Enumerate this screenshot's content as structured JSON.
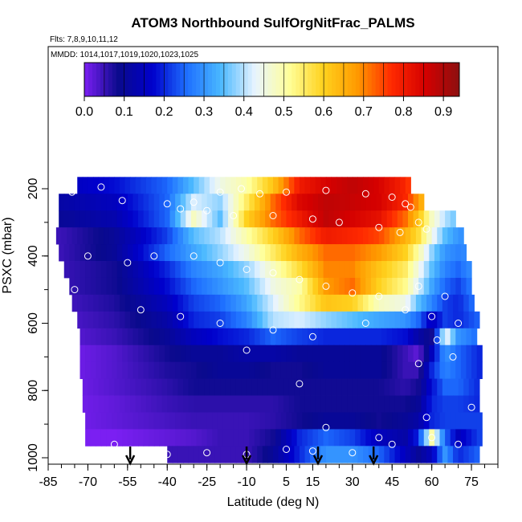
{
  "chart_data": {
    "type": "heatmap",
    "title": "ATOM3 Northbound SulfOrgNitFrac_PALMS",
    "subtitle_flights": "Flts: 7,8,9,10,11,12",
    "subtitle_dates": "MMDD: 1014,1017,1019,1020,1023,1025",
    "xlabel": "Latitude (deg N)",
    "ylabel": "PSXC (mbar)",
    "xlim": [
      -85,
      85
    ],
    "ylim": [
      1000,
      0
    ],
    "x_ticks": [
      -85,
      -70,
      -55,
      -40,
      -25,
      -10,
      5,
      15,
      30,
      45,
      60,
      75
    ],
    "y_ticks": [
      200,
      400,
      600,
      800,
      1000
    ],
    "colorbar": {
      "min": 0.0,
      "max": 0.94,
      "ticks": [
        0.0,
        0.1,
        0.2,
        0.3,
        0.4,
        0.5,
        0.6,
        0.7,
        0.8,
        0.9
      ],
      "colors": [
        "#7b1ff2",
        "#0a0a8c",
        "#0000cc",
        "#1e6fff",
        "#4ab8ff",
        "#e8f4ff",
        "#ffff9a",
        "#ffd21e",
        "#ff9a00",
        "#ff2a00",
        "#d40000",
        "#8c1010"
      ]
    },
    "arrows_latitude": [
      -54,
      -10,
      17,
      38
    ],
    "pressure_levels": [
      190,
      240,
      290,
      340,
      390,
      440,
      490,
      540,
      590,
      640,
      690,
      740,
      790,
      840,
      890,
      940,
      990
    ],
    "band_lat_ranges": [
      [
        -74,
        52
      ],
      [
        -81,
        56
      ],
      [
        -81,
        69
      ],
      [
        -82,
        71
      ],
      [
        -81,
        73
      ],
      [
        -79,
        74
      ],
      [
        -77,
        75
      ],
      [
        -76,
        76
      ],
      [
        -74,
        77
      ],
      [
        -73,
        77
      ],
      [
        -73,
        78
      ],
      [
        -73,
        78
      ],
      [
        -72,
        78
      ],
      [
        -72,
        78
      ],
      [
        -71,
        78
      ],
      [
        -71,
        78
      ],
      [
        -40,
        78
      ]
    ],
    "profile_lat": [
      -80,
      -60,
      -40,
      -30,
      -20,
      -10,
      0,
      10,
      20,
      30,
      40,
      50,
      55,
      60,
      65,
      70,
      78
    ],
    "profile_values": [
      [
        0.15,
        0.18,
        0.25,
        0.35,
        0.45,
        0.5,
        0.62,
        0.8,
        0.85,
        0.88,
        0.85,
        0.78,
        0.7,
        0.6,
        0.5,
        0.4,
        0.35
      ],
      [
        0.12,
        0.15,
        0.25,
        0.42,
        0.38,
        0.55,
        0.72,
        0.84,
        0.88,
        0.87,
        0.85,
        0.78,
        0.68,
        0.55,
        0.45,
        0.35,
        0.3
      ],
      [
        0.1,
        0.13,
        0.25,
        0.48,
        0.35,
        0.6,
        0.72,
        0.8,
        0.88,
        0.85,
        0.82,
        0.72,
        0.62,
        0.48,
        0.4,
        0.35,
        0.3
      ],
      [
        0.05,
        0.1,
        0.22,
        0.35,
        0.4,
        0.5,
        0.6,
        0.72,
        0.8,
        0.78,
        0.75,
        0.65,
        0.58,
        0.45,
        0.35,
        0.3,
        0.28
      ],
      [
        0.05,
        0.1,
        0.25,
        0.32,
        0.38,
        0.45,
        0.55,
        0.65,
        0.72,
        0.72,
        0.68,
        0.6,
        0.5,
        0.38,
        0.3,
        0.28,
        0.3
      ],
      [
        0.05,
        0.08,
        0.2,
        0.28,
        0.32,
        0.38,
        0.48,
        0.58,
        0.7,
        0.7,
        0.62,
        0.55,
        0.45,
        0.35,
        0.28,
        0.25,
        0.32
      ],
      [
        0.05,
        0.08,
        0.18,
        0.25,
        0.3,
        0.35,
        0.45,
        0.5,
        0.68,
        0.72,
        0.6,
        0.52,
        0.42,
        0.32,
        0.25,
        0.22,
        0.3
      ],
      [
        0.04,
        0.07,
        0.15,
        0.22,
        0.25,
        0.32,
        0.42,
        0.52,
        0.62,
        0.6,
        0.48,
        0.45,
        0.35,
        0.28,
        0.22,
        0.2,
        0.28
      ],
      [
        0.03,
        0.06,
        0.12,
        0.2,
        0.22,
        0.28,
        0.4,
        0.42,
        0.38,
        0.35,
        0.32,
        0.3,
        0.25,
        0.15,
        0.22,
        0.2,
        0.25
      ],
      [
        0.02,
        0.05,
        0.1,
        0.15,
        0.18,
        0.2,
        0.25,
        0.22,
        0.2,
        0.2,
        0.2,
        0.18,
        0.12,
        0.08,
        0.45,
        0.3,
        0.25
      ],
      [
        0.0,
        0.03,
        0.08,
        0.1,
        0.1,
        0.12,
        0.12,
        0.1,
        0.1,
        0.1,
        0.1,
        0.05,
        0.02,
        0.15,
        0.3,
        0.25,
        0.2
      ],
      [
        0.0,
        0.03,
        0.07,
        0.08,
        0.1,
        0.1,
        0.08,
        0.08,
        0.1,
        0.1,
        0.1,
        0.05,
        0.05,
        0.2,
        0.28,
        0.25,
        0.2
      ],
      [
        0.0,
        0.03,
        0.06,
        0.08,
        0.08,
        0.08,
        0.08,
        0.08,
        0.08,
        0.08,
        0.08,
        0.06,
        0.08,
        0.18,
        0.25,
        0.25,
        0.2
      ],
      [
        0.0,
        0.02,
        0.05,
        0.06,
        0.06,
        0.06,
        0.06,
        0.08,
        0.08,
        0.08,
        0.08,
        0.08,
        0.1,
        0.2,
        0.22,
        0.22,
        0.2
      ],
      [
        0.0,
        0.02,
        0.04,
        0.05,
        0.05,
        0.05,
        0.06,
        0.08,
        0.1,
        0.1,
        0.08,
        0.1,
        0.12,
        0.2,
        0.22,
        0.22,
        0.22
      ],
      [
        0.0,
        0.0,
        0.02,
        0.03,
        0.05,
        0.05,
        0.08,
        0.2,
        0.25,
        0.22,
        0.15,
        0.12,
        0.2,
        0.5,
        0.25,
        0.15,
        0.22
      ],
      [
        0.05,
        0.05,
        0.05,
        0.05,
        0.05,
        0.05,
        0.1,
        0.2,
        0.3,
        0.3,
        0.25,
        0.15,
        0.1,
        0.15,
        0.3,
        0.2,
        0.25
      ]
    ],
    "sample_points": [
      [
        -65,
        195
      ],
      [
        -76,
        210
      ],
      [
        -57,
        235
      ],
      [
        -40,
        245
      ],
      [
        -30,
        240
      ],
      [
        -20,
        210
      ],
      [
        -12,
        200
      ],
      [
        -5,
        215
      ],
      [
        5,
        210
      ],
      [
        20,
        205
      ],
      [
        35,
        215
      ],
      [
        45,
        225
      ],
      [
        50,
        245
      ],
      [
        52,
        255
      ],
      [
        -35,
        260
      ],
      [
        -25,
        265
      ],
      [
        -15,
        280
      ],
      [
        0,
        280
      ],
      [
        15,
        290
      ],
      [
        25,
        300
      ],
      [
        40,
        315
      ],
      [
        48,
        330
      ],
      [
        55,
        300
      ],
      [
        58,
        320
      ],
      [
        -70,
        400
      ],
      [
        -55,
        420
      ],
      [
        -45,
        400
      ],
      [
        -30,
        400
      ],
      [
        -20,
        420
      ],
      [
        -10,
        440
      ],
      [
        0,
        450
      ],
      [
        10,
        470
      ],
      [
        20,
        490
      ],
      [
        30,
        510
      ],
      [
        40,
        520
      ],
      [
        55,
        490
      ],
      [
        65,
        520
      ],
      [
        -75,
        500
      ],
      [
        -50,
        560
      ],
      [
        -35,
        580
      ],
      [
        -20,
        600
      ],
      [
        0,
        620
      ],
      [
        15,
        640
      ],
      [
        35,
        600
      ],
      [
        50,
        560
      ],
      [
        60,
        580
      ],
      [
        70,
        600
      ],
      [
        -10,
        680
      ],
      [
        10,
        780
      ],
      [
        55,
        720
      ],
      [
        62,
        650
      ],
      [
        68,
        700
      ],
      [
        58,
        880
      ],
      [
        20,
        910
      ],
      [
        40,
        940
      ],
      [
        -40,
        990
      ],
      [
        -25,
        985
      ],
      [
        -10,
        990
      ],
      [
        5,
        975
      ],
      [
        15,
        980
      ],
      [
        30,
        985
      ],
      [
        45,
        960
      ],
      [
        60,
        940
      ],
      [
        70,
        960
      ],
      [
        75,
        850
      ],
      [
        -60,
        960
      ],
      [
        -80,
        980
      ]
    ]
  }
}
